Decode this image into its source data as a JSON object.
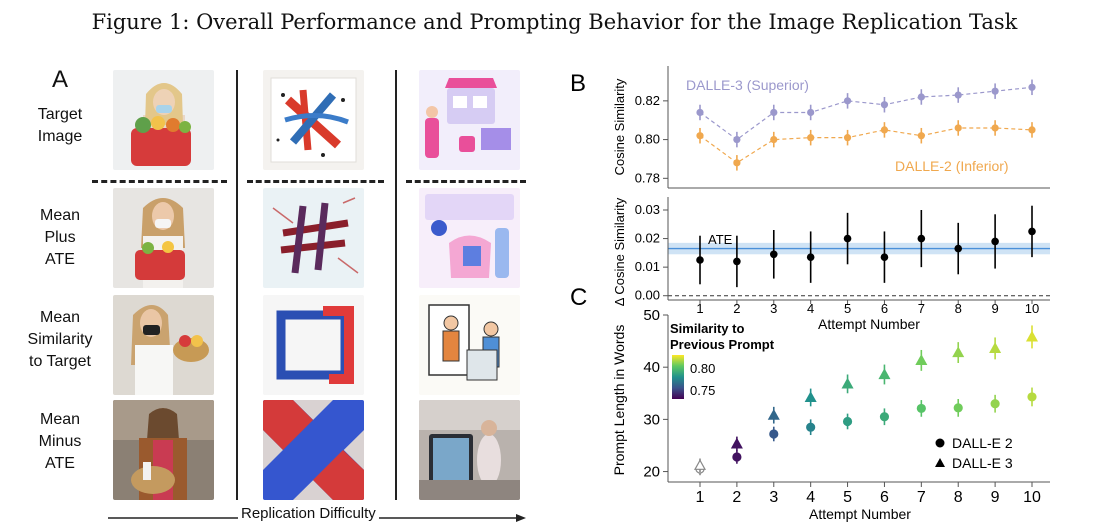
{
  "figure_title": "Figure 1: Overall Performance and Prompting Behavior for the Image Replication Task",
  "panel_a": {
    "letter": "A",
    "row_labels": [
      "Target\nImage",
      "Mean\nPlus\nATE",
      "Mean\nSimilarity\nto Target",
      "Mean\nMinus\nATE"
    ],
    "difficulty_label": "Replication Difficulty"
  },
  "panel_b": {
    "letter": "B"
  },
  "panel_c": {
    "letter": "C"
  },
  "colors": {
    "dalle3": "#9b98cc",
    "dalle2": "#f0a84e",
    "ate_band": "#cfe3f5",
    "ate_line": "#4a90d9"
  },
  "chart_data": [
    {
      "id": "B-top",
      "type": "scatter",
      "ylabel": "Cosine Similarity",
      "ylim": [
        0.775,
        0.838
      ],
      "yticks": [
        0.78,
        0.8,
        0.82
      ],
      "x": [
        1,
        2,
        3,
        4,
        5,
        6,
        7,
        8,
        9,
        10
      ],
      "series": [
        {
          "name": "DALLE-3 (Superior)",
          "color": "#9b98cc",
          "values": [
            0.814,
            0.8,
            0.814,
            0.814,
            0.82,
            0.818,
            0.822,
            0.823,
            0.825,
            0.827
          ],
          "err": [
            0.004,
            0.004,
            0.004,
            0.004,
            0.004,
            0.004,
            0.004,
            0.004,
            0.004,
            0.004
          ]
        },
        {
          "name": "DALLE-2 (Inferior)",
          "color": "#f0a84e",
          "values": [
            0.802,
            0.788,
            0.8,
            0.801,
            0.801,
            0.805,
            0.802,
            0.806,
            0.806,
            0.805
          ],
          "err": [
            0.004,
            0.004,
            0.004,
            0.004,
            0.004,
            0.004,
            0.004,
            0.004,
            0.004,
            0.004
          ]
        }
      ]
    },
    {
      "id": "B-bottom",
      "type": "scatter",
      "ylabel": "Δ Cosine Similarity",
      "xlabel": "Attempt Number",
      "ylim": [
        -0.0015,
        0.0335
      ],
      "yticks": [
        0.0,
        0.01,
        0.02,
        0.03
      ],
      "ytick_labels": [
        "0.00",
        "0.01",
        "0.02",
        "0.03"
      ],
      "x": [
        1,
        2,
        3,
        4,
        5,
        6,
        7,
        8,
        9,
        10
      ],
      "values": [
        0.0125,
        0.012,
        0.0145,
        0.0135,
        0.02,
        0.0135,
        0.02,
        0.0165,
        0.019,
        0.0225
      ],
      "err": [
        0.0085,
        0.009,
        0.0085,
        0.009,
        0.009,
        0.009,
        0.01,
        0.009,
        0.0095,
        0.009
      ],
      "ate": 0.0165,
      "ate_band": [
        0.0145,
        0.0185
      ],
      "ate_label": "ATE"
    },
    {
      "id": "C",
      "type": "scatter",
      "ylabel": "Prompt Length in Words",
      "xlabel": "Attempt Number",
      "ylim": [
        18,
        50
      ],
      "yticks": [
        20,
        30,
        40,
        50
      ],
      "x": [
        1,
        2,
        3,
        4,
        5,
        6,
        7,
        8,
        9,
        10
      ],
      "legend_title": "Similarity to\nPrevious Prompt",
      "colorbar_ticks": [
        "0.80",
        "0.75"
      ],
      "series": [
        {
          "name": "DALL-E 2",
          "marker": "circle",
          "values": [
            20.5,
            22.8,
            27.2,
            28.5,
            29.6,
            30.5,
            32.1,
            32.2,
            33.0,
            34.3
          ],
          "err": [
            1.2,
            1.3,
            1.4,
            1.5,
            1.5,
            1.6,
            1.6,
            1.7,
            1.7,
            1.8
          ],
          "similarity": [
            null,
            0.735,
            0.755,
            0.77,
            0.78,
            0.785,
            0.795,
            0.8,
            0.805,
            0.81
          ]
        },
        {
          "name": "DALL-E 3",
          "marker": "triangle",
          "values": [
            21.2,
            25.3,
            30.8,
            34.2,
            36.8,
            38.6,
            41.3,
            42.8,
            43.6,
            45.8
          ],
          "err": [
            1.3,
            1.4,
            1.6,
            1.7,
            1.8,
            1.9,
            2.0,
            2.0,
            2.1,
            2.2
          ],
          "similarity": [
            null,
            0.735,
            0.76,
            0.775,
            0.785,
            0.79,
            0.8,
            0.805,
            0.81,
            0.815
          ]
        }
      ]
    }
  ]
}
